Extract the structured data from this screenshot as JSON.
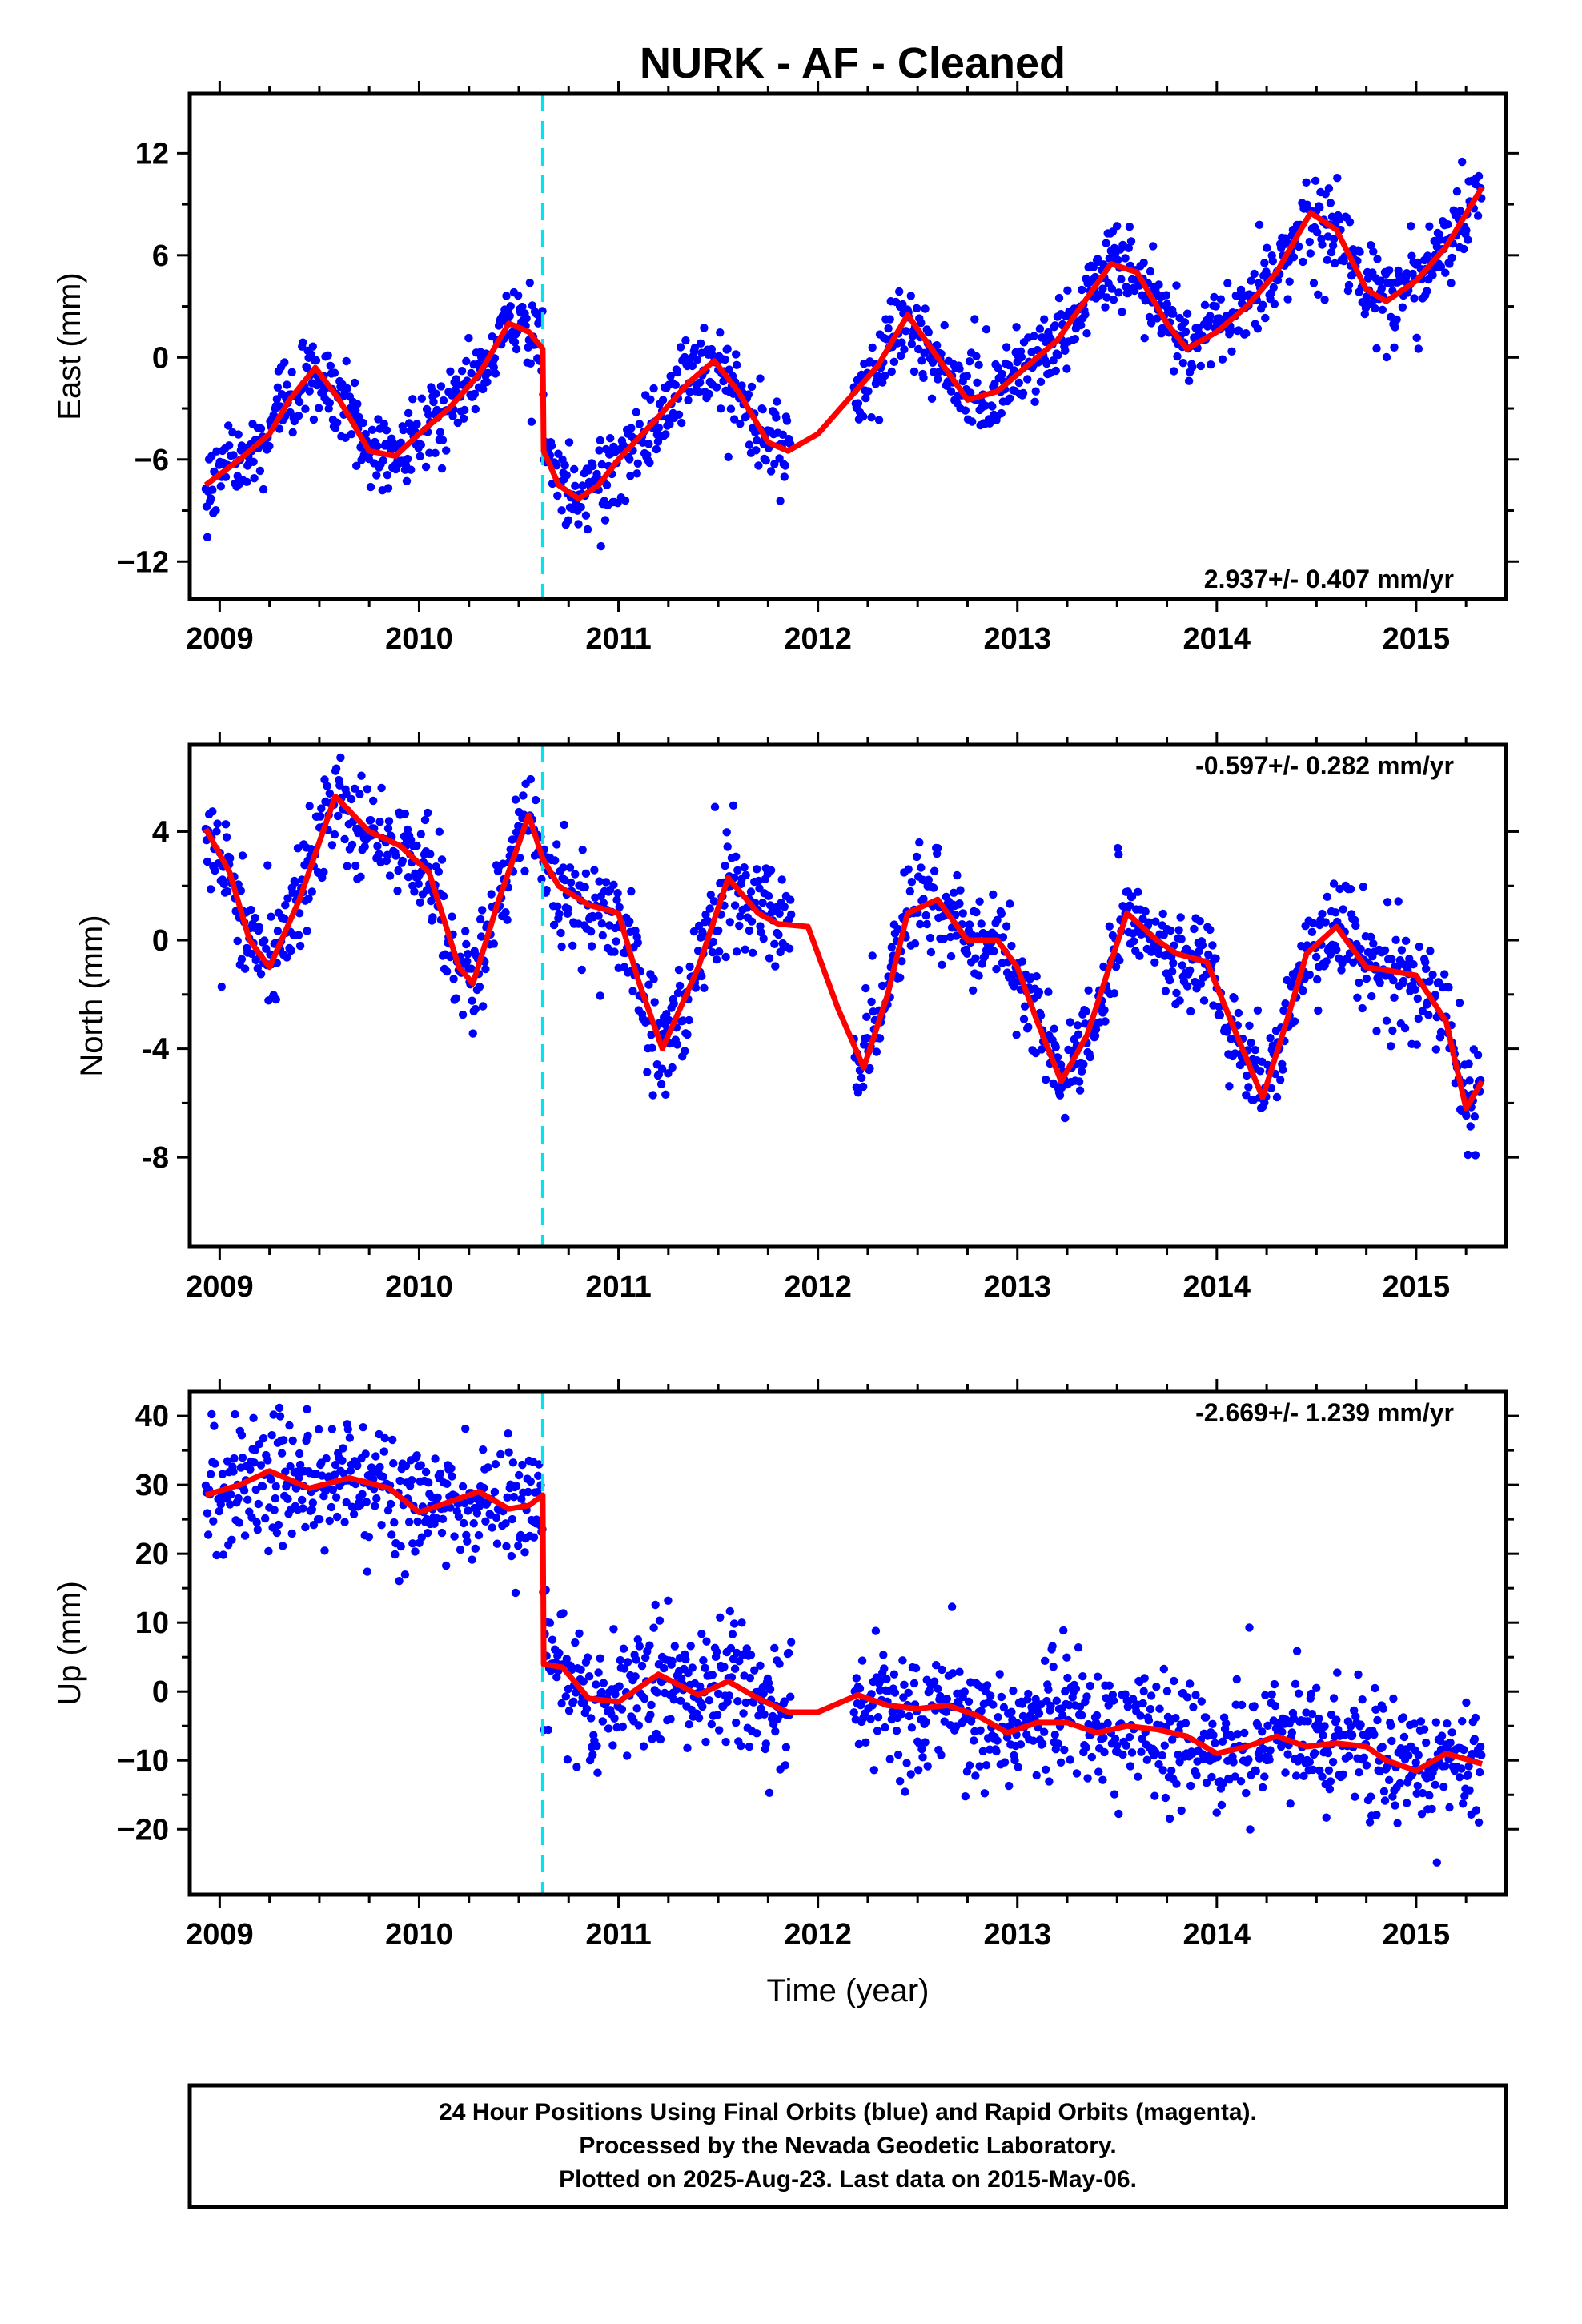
{
  "title": "NURK  - AF - Cleaned",
  "footer": {
    "lines": [
      "24 Hour Positions Using Final Orbits (blue) and Rapid Orbits (magenta).",
      "Processed by the Nevada Geodetic Laboratory.",
      "Plotted on 2025-Aug-23. Last data on 2015-May-06."
    ]
  },
  "colors": {
    "final_orbits": "#0000ff",
    "model_fit": "#ff0000",
    "equipment_change": "#00e5ee",
    "frame": "#000000"
  },
  "chart_data": [
    {
      "type": "scatter",
      "component": "East",
      "ylabel": "East (mm)",
      "xlabel": "",
      "xlim": [
        2008.85,
        2015.45
      ],
      "ylim": [
        -14.2,
        15.5
      ],
      "yticks": [
        -12,
        -6,
        0,
        6,
        12
      ],
      "ytick_labels": [
        "−12",
        "−6",
        "0",
        "6",
        "12"
      ],
      "xticks": [
        2009,
        2010,
        2011,
        2012,
        2013,
        2014,
        2015
      ],
      "xtick_labels": [
        "2009",
        "2010",
        "2011",
        "2012",
        "2013",
        "2014",
        "2015"
      ],
      "rate_label": "2.937+/- 0.407 mm/yr",
      "rate_position": "bottom-right",
      "step_epoch": 2010.62,
      "model_fit": {
        "x": [
          2008.93,
          2009.1,
          2009.25,
          2009.35,
          2009.48,
          2009.6,
          2009.75,
          2009.88,
          2010.0,
          2010.15,
          2010.3,
          2010.45,
          2010.55,
          2010.62,
          2010.625,
          2010.7,
          2010.8,
          2010.9,
          2011.0,
          2011.2,
          2011.35,
          2011.48,
          2011.6,
          2011.75,
          2011.85,
          2012.0,
          2012.15,
          2012.3,
          2012.45,
          2012.6,
          2012.75,
          2012.9,
          2013.05,
          2013.2,
          2013.35,
          2013.47,
          2013.6,
          2013.75,
          2013.85,
          2014.0,
          2014.15,
          2014.3,
          2014.47,
          2014.6,
          2014.75,
          2014.85,
          2015.0,
          2015.15,
          2015.33
        ],
        "y": [
          -7.5,
          -6.0,
          -4.5,
          -2.5,
          -0.6,
          -2.5,
          -5.5,
          -5.8,
          -4.5,
          -3.0,
          -1.0,
          2.0,
          1.5,
          0.5,
          -5.5,
          -7.5,
          -8.3,
          -7.5,
          -6.0,
          -3.5,
          -1.5,
          -0.2,
          -2.0,
          -5.0,
          -5.5,
          -4.5,
          -2.5,
          -0.5,
          2.5,
          0.0,
          -2.5,
          -2.0,
          -0.5,
          1.0,
          3.5,
          5.5,
          5.0,
          2.0,
          0.5,
          1.5,
          3.0,
          5.0,
          8.5,
          7.5,
          4.0,
          3.3,
          4.5,
          6.5,
          10.0
        ]
      }
    },
    {
      "type": "scatter",
      "component": "North",
      "ylabel": "North (mm)",
      "xlabel": "",
      "xlim": [
        2008.85,
        2015.45
      ],
      "ylim": [
        -11.3,
        7.2
      ],
      "yticks": [
        -8,
        -4,
        0,
        4
      ],
      "ytick_labels": [
        "-8",
        "-4",
        "0",
        "4"
      ],
      "xticks": [
        2009,
        2010,
        2011,
        2012,
        2013,
        2014,
        2015
      ],
      "xtick_labels": [
        "2009",
        "2010",
        "2011",
        "2012",
        "2013",
        "2014",
        "2015"
      ],
      "rate_label": "-0.597+/- 0.282 mm/yr",
      "rate_position": "top-right",
      "step_epoch": 2010.62,
      "model_fit": {
        "x": [
          2008.93,
          2009.05,
          2009.15,
          2009.25,
          2009.4,
          2009.58,
          2009.75,
          2009.9,
          2010.05,
          2010.2,
          2010.27,
          2010.4,
          2010.55,
          2010.62,
          2010.7,
          2010.85,
          2011.0,
          2011.1,
          2011.22,
          2011.4,
          2011.55,
          2011.7,
          2011.8,
          2011.95,
          2012.1,
          2012.23,
          2012.35,
          2012.45,
          2012.6,
          2012.75,
          2012.9,
          2013.0,
          2013.1,
          2013.22,
          2013.35,
          2013.55,
          2013.7,
          2013.8,
          2013.95,
          2014.1,
          2014.23,
          2014.35,
          2014.45,
          2014.6,
          2014.75,
          2014.85,
          2015.0,
          2015.15,
          2015.25,
          2015.33
        ],
        "y": [
          4.1,
          2.5,
          0.0,
          -1.0,
          1.5,
          5.3,
          4.0,
          3.5,
          2.5,
          -1.0,
          -1.6,
          1.5,
          4.6,
          3.0,
          2.0,
          1.3,
          1.0,
          -1.5,
          -4.0,
          -1.0,
          2.3,
          1.0,
          0.6,
          0.5,
          -2.5,
          -4.7,
          -2.0,
          1.0,
          1.5,
          0.0,
          0.0,
          -1.0,
          -3.0,
          -5.2,
          -3.5,
          1.0,
          0.0,
          -0.5,
          -0.8,
          -3.5,
          -5.8,
          -3.0,
          -0.5,
          0.5,
          -1.0,
          -1.1,
          -1.3,
          -3.0,
          -6.2,
          -5.2
        ]
      }
    },
    {
      "type": "scatter",
      "component": "Up",
      "ylabel": "Up (mm)",
      "xlabel": "Time (year)",
      "xlim": [
        2008.85,
        2015.45
      ],
      "ylim": [
        -29.5,
        43.5
      ],
      "yticks": [
        -20,
        -10,
        0,
        10,
        20,
        30,
        40
      ],
      "ytick_labels": [
        "−20",
        "−10",
        "0",
        "10",
        "20",
        "30",
        "40"
      ],
      "xticks": [
        2009,
        2010,
        2011,
        2012,
        2013,
        2014,
        2015
      ],
      "xtick_labels": [
        "2009",
        "2010",
        "2011",
        "2012",
        "2013",
        "2014",
        "2015"
      ],
      "rate_label": "-2.669+/- 1.239 mm/yr",
      "rate_position": "top-right",
      "step_epoch": 2010.62,
      "model_fit": {
        "x": [
          2008.93,
          2009.1,
          2009.25,
          2009.45,
          2009.65,
          2009.85,
          2010.0,
          2010.15,
          2010.3,
          2010.45,
          2010.55,
          2010.62,
          2010.625,
          2010.72,
          2010.85,
          2011.0,
          2011.2,
          2011.4,
          2011.55,
          2011.7,
          2011.85,
          2012.0,
          2012.2,
          2012.35,
          2012.5,
          2012.65,
          2012.8,
          2012.95,
          2013.1,
          2013.25,
          2013.4,
          2013.55,
          2013.7,
          2013.85,
          2014.0,
          2014.15,
          2014.3,
          2014.45,
          2014.6,
          2014.75,
          2014.85,
          2015.0,
          2015.15,
          2015.33
        ],
        "y": [
          28.5,
          30.0,
          32.0,
          29.5,
          31.0,
          29.5,
          26.0,
          27.5,
          29.0,
          26.5,
          27.0,
          28.5,
          4.0,
          3.5,
          -1.0,
          -1.5,
          2.5,
          -0.5,
          1.5,
          -1.0,
          -3.0,
          -3.0,
          -0.5,
          -2.0,
          -2.5,
          -2.0,
          -3.5,
          -6.0,
          -4.5,
          -4.5,
          -6.0,
          -5.0,
          -5.5,
          -6.5,
          -9.0,
          -8.0,
          -6.5,
          -8.0,
          -7.5,
          -8.0,
          -10.0,
          -11.5,
          -9.0,
          -10.5
        ]
      }
    }
  ]
}
